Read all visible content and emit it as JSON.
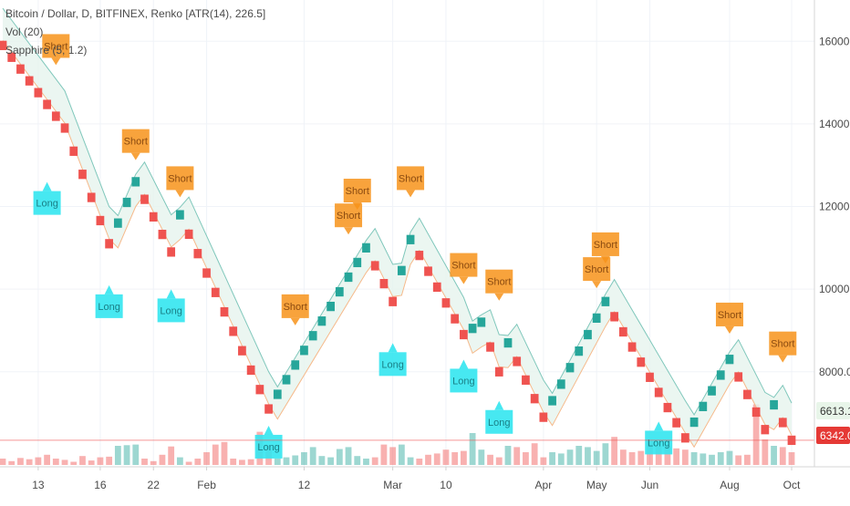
{
  "legend": {
    "line1": "Bitcoin / Dollar, D, BITFINEX, Renko [ATR(14), 226.5]",
    "line2": "Vol (20)",
    "line3": "Sapphire (5, 1.2)"
  },
  "colors": {
    "up": "#26a69a",
    "down": "#ef5350",
    "signal_short": "#f7931a",
    "signal_long": "#33e6f0",
    "price_line": "#ef5350",
    "last_price_tag": "#e53935",
    "band_price_tag": "#e8f5e9"
  },
  "price_tags": {
    "last": "6342.0",
    "band": "6613.1"
  },
  "signal_label_short": "Short",
  "signal_label_long": "Long",
  "chart_data": {
    "type": "renko",
    "title": "Bitcoin / Dollar, D, BITFINEX, Renko [ATR(14), 226.5]",
    "brick_size": 226.5,
    "y_axis": {
      "min": 5700,
      "max": 17000,
      "ticks": [
        8000,
        10000,
        12000,
        14000,
        16000
      ],
      "tick_labels": [
        "8000.0",
        "10000.0",
        "12000.0",
        "14000.0",
        "16000.0"
      ]
    },
    "x_axis": {
      "labels": [
        "13",
        "16",
        "22",
        "Feb",
        "12",
        "Mar",
        "10",
        "Apr",
        "May",
        "Jun",
        "Aug",
        "Oct"
      ],
      "label_brick_index": [
        4,
        11,
        17,
        23,
        34,
        44,
        50,
        61,
        67,
        73,
        82,
        89
      ]
    },
    "brick_count": 90,
    "price_path": [
      {
        "brick": 0,
        "price": 15900
      },
      {
        "brick": 7,
        "price": 13900
      },
      {
        "brick": 12,
        "price": 11100
      },
      {
        "brick": 15,
        "price": 12600
      },
      {
        "brick": 19,
        "price": 10900
      },
      {
        "brick": 20,
        "price": 11800
      },
      {
        "brick": 30,
        "price": 7100
      },
      {
        "brick": 41,
        "price": 11000
      },
      {
        "brick": 44,
        "price": 9700
      },
      {
        "brick": 46,
        "price": 11200
      },
      {
        "brick": 52,
        "price": 8900
      },
      {
        "brick": 54,
        "price": 9200
      },
      {
        "brick": 56,
        "price": 8000
      },
      {
        "brick": 57,
        "price": 8700
      },
      {
        "brick": 61,
        "price": 6900
      },
      {
        "brick": 68,
        "price": 9700
      },
      {
        "brick": 77,
        "price": 6400
      },
      {
        "brick": 82,
        "price": 8300
      },
      {
        "brick": 86,
        "price": 6600
      },
      {
        "brick": 87,
        "price": 7200
      },
      {
        "brick": 89,
        "price": 6342
      }
    ],
    "band_offset": 900,
    "band_lower_offset": 600,
    "last_price": 6342.0,
    "band_value": 6613.1,
    "signals": [
      {
        "type": "short",
        "brick": 6,
        "price": 15600
      },
      {
        "type": "short",
        "brick": 15,
        "price": 13300
      },
      {
        "type": "short",
        "brick": 20,
        "price": 12400
      },
      {
        "type": "short",
        "brick": 33,
        "price": 9300
      },
      {
        "type": "short",
        "brick": 39,
        "price": 11500
      },
      {
        "type": "short",
        "brick": 40,
        "price": 12100
      },
      {
        "type": "short",
        "brick": 46,
        "price": 12400
      },
      {
        "type": "short",
        "brick": 52,
        "price": 10300
      },
      {
        "type": "short",
        "brick": 56,
        "price": 9900
      },
      {
        "type": "short",
        "brick": 67,
        "price": 10200
      },
      {
        "type": "short",
        "brick": 68,
        "price": 10800
      },
      {
        "type": "short",
        "brick": 82,
        "price": 9100
      },
      {
        "type": "short",
        "brick": 88,
        "price": 8400
      },
      {
        "type": "long",
        "brick": 5,
        "price": 11800
      },
      {
        "type": "long",
        "brick": 12,
        "price": 9300
      },
      {
        "type": "long",
        "brick": 19,
        "price": 9200
      },
      {
        "type": "long",
        "brick": 30,
        "price": 5900
      },
      {
        "type": "long",
        "brick": 44,
        "price": 7900
      },
      {
        "type": "long",
        "brick": 52,
        "price": 7500
      },
      {
        "type": "long",
        "brick": 56,
        "price": 6500
      },
      {
        "type": "long",
        "brick": 74,
        "price": 6000
      }
    ],
    "volume": [
      0.1,
      0.06,
      0.11,
      0.09,
      0.12,
      0.16,
      0.1,
      0.08,
      0.05,
      0.14,
      0.07,
      0.12,
      0.13,
      0.3,
      0.31,
      0.32,
      0.1,
      0.06,
      0.16,
      0.29,
      0.12,
      0.05,
      0.1,
      0.2,
      0.32,
      0.36,
      0.1,
      0.08,
      0.09,
      0.52,
      0.3,
      0.1,
      0.12,
      0.15,
      0.2,
      0.28,
      0.14,
      0.12,
      0.25,
      0.28,
      0.14,
      0.1,
      0.12,
      0.32,
      0.28,
      0.32,
      0.12,
      0.1,
      0.16,
      0.18,
      0.24,
      0.2,
      0.22,
      0.5,
      0.24,
      0.16,
      0.12,
      0.3,
      0.28,
      0.2,
      0.34,
      0.12,
      0.2,
      0.18,
      0.24,
      0.3,
      0.28,
      0.22,
      0.34,
      0.44,
      0.24,
      0.2,
      0.22,
      0.38,
      0.3,
      0.3,
      0.26,
      0.24,
      0.2,
      0.18,
      0.16,
      0.2,
      0.22,
      0.15,
      0.16,
      0.95,
      0.4,
      0.3,
      0.28,
      0.2
    ]
  }
}
